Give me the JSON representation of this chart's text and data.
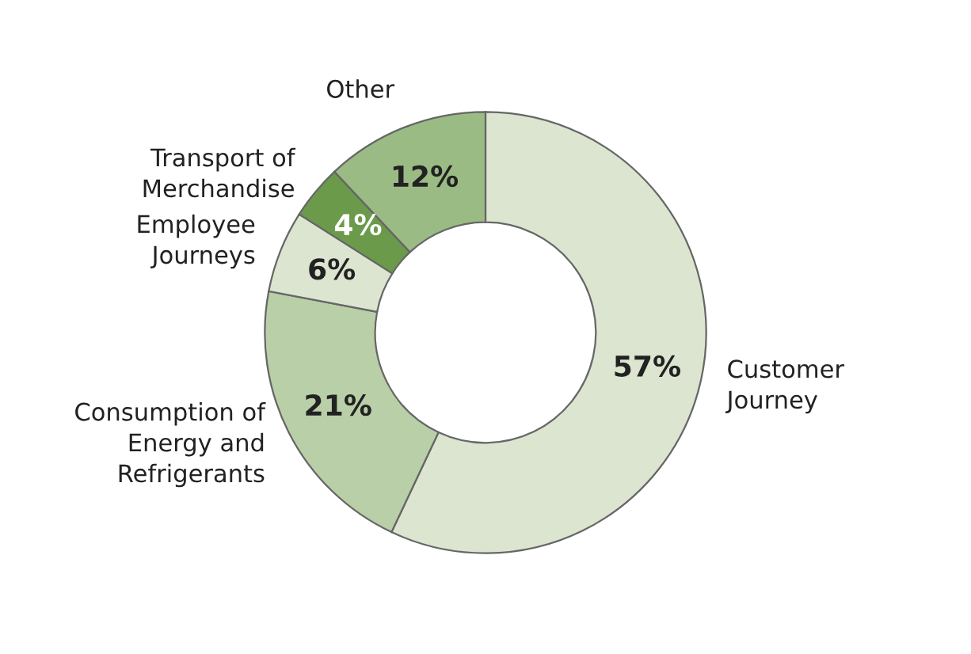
{
  "chart_data": {
    "type": "donut",
    "categories": [
      "Customer\nJourney",
      "Consumption of\nEnergy and\nRefrigerants",
      "Employee\nJourneys",
      "Transport of\nMerchandise",
      "Other"
    ],
    "values": [
      57,
      21,
      6,
      4,
      12
    ],
    "colors": [
      "#dce5d0",
      "#b9cfa8",
      "#dce5d0",
      "#6a9a4a",
      "#9bbb85"
    ],
    "value_labels": [
      "57%",
      "21%",
      "6%",
      "4%",
      "12%"
    ]
  }
}
